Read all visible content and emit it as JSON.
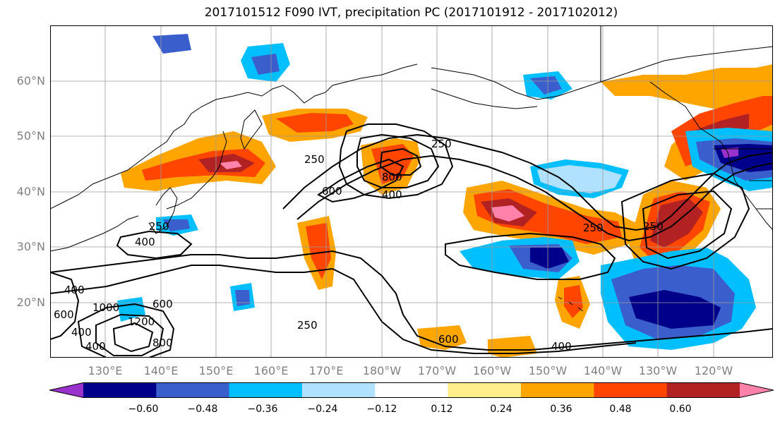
{
  "title": "2017101512 F090 IVT, precipitation PC (2017101912 - 2017102012)",
  "latitude_labels": [
    "60°N",
    "50°N",
    "40°N",
    "30°N",
    "20°N"
  ],
  "longitude_labels": [
    "130°E",
    "140°E",
    "150°E",
    "160°E",
    "170°E",
    "180°W",
    "170°W",
    "160°W",
    "150°W",
    "140°W",
    "130°W",
    "120°W"
  ],
  "contour_labels": [
    "250",
    "800",
    "400",
    "600",
    "250",
    "400",
    "250",
    "400",
    "600",
    "400",
    "1000",
    "1200",
    "600",
    "800",
    "400",
    "250",
    "600",
    "400",
    "250",
    "250"
  ],
  "colorbar": {
    "ticks": [
      "−0.60",
      "−0.48",
      "−0.36",
      "−0.24",
      "−0.12",
      "0.12",
      "0.24",
      "0.36",
      "0.48",
      "0.60"
    ],
    "colors": [
      "#9932cc",
      "#00008b",
      "#3a5fcd",
      "#00bfff",
      "#b0e2ff",
      "#ffffff",
      "#ffec8b",
      "#ffa500",
      "#ff4500",
      "#b22222",
      "#ff82ab"
    ]
  }
}
